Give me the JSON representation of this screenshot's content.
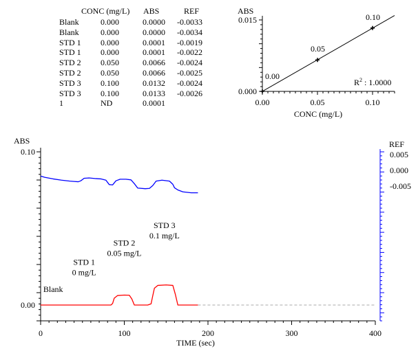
{
  "table": {
    "headers": [
      "CONC (mg/L)",
      "ABS",
      "REF"
    ],
    "rows": [
      [
        "Blank",
        "0.000",
        "0.0000",
        "-0.0033"
      ],
      [
        "Blank",
        "0.000",
        "0.0000",
        "-0.0034"
      ],
      [
        "STD 1",
        "0.000",
        "0.0001",
        "-0.0019"
      ],
      [
        "STD 1",
        "0.000",
        "0.0001",
        "-0.0022"
      ],
      [
        "STD 2",
        "0.050",
        "0.0066",
        "-0.0024"
      ],
      [
        "STD 2",
        "0.050",
        "0.0066",
        "-0.0025"
      ],
      [
        "STD 3",
        "0.100",
        "0.0132",
        "-0.0024"
      ],
      [
        "STD 3",
        "0.100",
        "0.0133",
        "-0.0026"
      ],
      [
        "1",
        "ND",
        "0.0001",
        ""
      ]
    ]
  },
  "chart_data": [
    {
      "type": "scatter",
      "ylabel": "ABS",
      "xlabel": "CONC (mg/L)",
      "xlim": [
        0,
        0.12
      ],
      "ylim": [
        0,
        0.015
      ],
      "x_ticks": [
        "0.00",
        "0.05",
        "0.10"
      ],
      "y_ticks": [
        "0.000",
        "0.015"
      ],
      "points": [
        {
          "x": 0.0,
          "y": 0.0,
          "label": "0.00"
        },
        {
          "x": 0.05,
          "y": 0.0066,
          "label": "0.05"
        },
        {
          "x": 0.1,
          "y": 0.0133,
          "label": "0.10"
        }
      ],
      "fit_line": {
        "slope": 0.1327,
        "intercept": 0.0
      },
      "r2_label": "R",
      "r2_sup": "2",
      "r2_value": " : 1.0000",
      "colors": {
        "points": "#000000",
        "line": "#000000"
      }
    },
    {
      "type": "line",
      "xlabel": "TIME (sec)",
      "ylabel": "ABS",
      "ylabel_right": "REF",
      "xlim": [
        0,
        400
      ],
      "ylim": [
        0,
        0.1
      ],
      "x_ticks": [
        "0",
        "100",
        "200",
        "300",
        "400"
      ],
      "y_ticks": [
        "0.00",
        "0.10"
      ],
      "ref_ylim": [
        -0.012,
        0.009
      ],
      "ref_ticks": [
        "0.005",
        "0.000",
        "-0.005"
      ],
      "series": [
        {
          "color": "#ff0000",
          "x": [
            0,
            84,
            86,
            88,
            92,
            100,
            106,
            109,
            112,
            128,
            132,
            134,
            136,
            140,
            150,
            158,
            161,
            164,
            188
          ],
          "y": [
            0.0,
            0.0,
            0.001,
            0.0045,
            0.0062,
            0.0065,
            0.0064,
            0.004,
            0.0,
            0.0,
            0.0008,
            0.006,
            0.011,
            0.0128,
            0.0131,
            0.0128,
            0.007,
            0.0,
            0.0
          ]
        },
        {
          "color": "#0000ff",
          "x": [
            0,
            5,
            15,
            25,
            35,
            40,
            45,
            48,
            52,
            58,
            66,
            72,
            78,
            82,
            86,
            90,
            95,
            102,
            108,
            112,
            116,
            125,
            130,
            134,
            138,
            145,
            154,
            158,
            160,
            164,
            170,
            180,
            188
          ],
          "y": [
            -0.0018,
            -0.0022,
            -0.0027,
            -0.0031,
            -0.0034,
            -0.0035,
            -0.0036,
            -0.0033,
            -0.0025,
            -0.0024,
            -0.0026,
            -0.0027,
            -0.0031,
            -0.0045,
            -0.0046,
            -0.0033,
            -0.0028,
            -0.0028,
            -0.003,
            -0.0042,
            -0.0056,
            -0.0058,
            -0.0057,
            -0.0048,
            -0.0034,
            -0.0031,
            -0.0034,
            -0.0044,
            -0.0055,
            -0.0062,
            -0.0068,
            -0.0071,
            -0.0071
          ]
        }
      ],
      "annotations": [
        {
          "x": 15,
          "y": 0.0085,
          "lines": [
            "Blank"
          ]
        },
        {
          "x": 52,
          "y": 0.0195,
          "lines": [
            "STD 1",
            "0 mg/L"
          ]
        },
        {
          "x": 100,
          "y": 0.032,
          "lines": [
            "STD 2",
            "0.05 mg/L"
          ]
        },
        {
          "x": 148,
          "y": 0.0435,
          "lines": [
            "STD 3",
            "0.1 mg/L"
          ]
        }
      ],
      "baseline_color": "#aaaaaa"
    }
  ]
}
